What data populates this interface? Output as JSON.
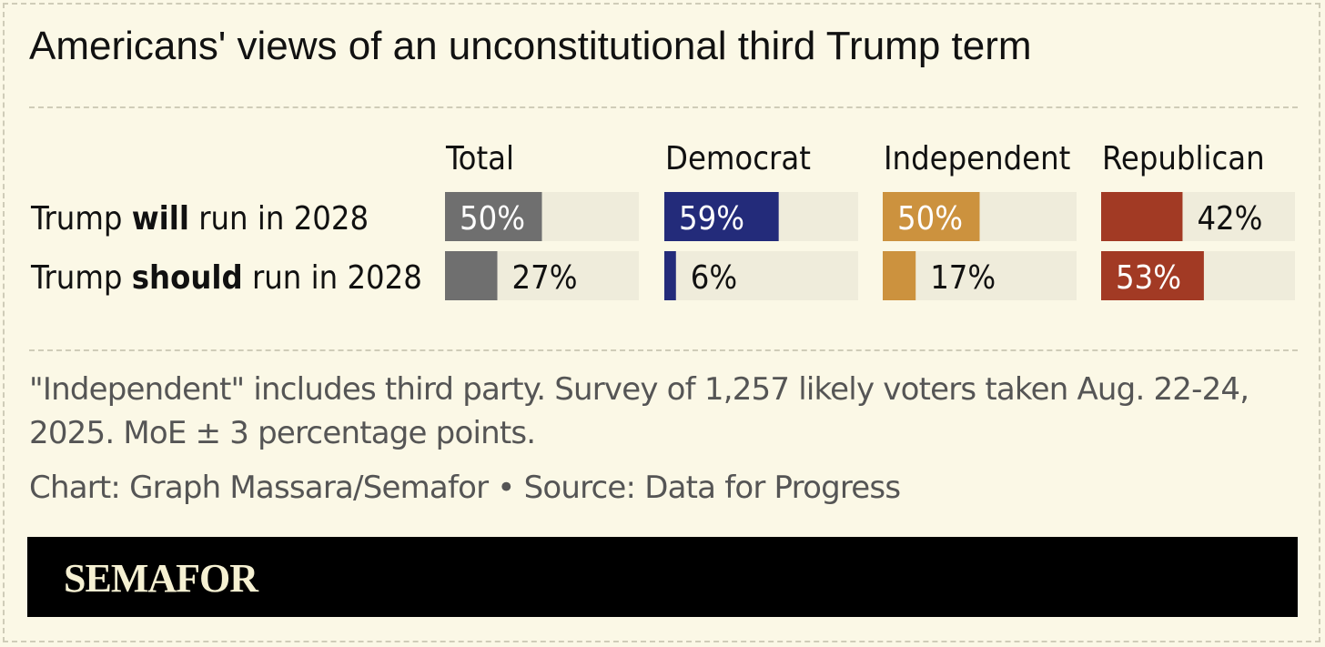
{
  "title": "Americans' views of an unconstitutional third Trump term",
  "note": "\"Independent\" includes third party. Survey of 1,257 likely voters taken Aug. 22-24, 2025. MoE ± 3 percentage points.",
  "credit": "Chart: Graph Massara/Semafor • Source: Data for Progress",
  "logo": "SEMAFOR",
  "chart_data": {
    "type": "bar",
    "title": "Americans' views of an unconstitutional third Trump term",
    "orientation": "horizontal",
    "small_multiples": true,
    "xlim": [
      0,
      100
    ],
    "unit": "%",
    "categories": [
      {
        "pre": "Trump ",
        "bold": "will",
        "post": " run in 2028"
      },
      {
        "pre": "Trump ",
        "bold": "should",
        "post": " run in 2028"
      }
    ],
    "series": [
      {
        "name": "Total",
        "color": "#6f6f6f",
        "values": [
          50,
          27
        ]
      },
      {
        "name": "Democrat",
        "color": "#232b7a",
        "values": [
          59,
          6
        ]
      },
      {
        "name": "Independent",
        "color": "#cc923e",
        "values": [
          50,
          17
        ]
      },
      {
        "name": "Republican",
        "color": "#a23a24",
        "values": [
          42,
          53
        ]
      }
    ],
    "track_color": "#efecdb",
    "grid": false,
    "legend": "none"
  }
}
